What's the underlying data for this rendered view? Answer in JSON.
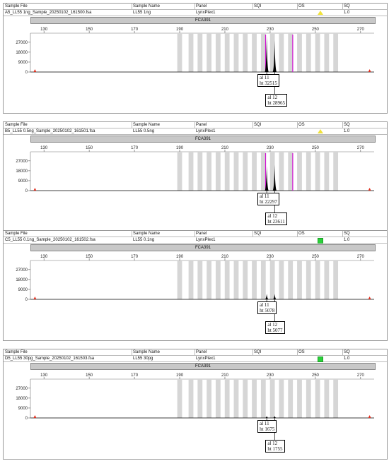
{
  "headers": {
    "sample_file": "Sample File",
    "sample_name": "Sample Name",
    "panel": "Panel",
    "sqi": "SQI",
    "os": "OS",
    "sq": "SQ"
  },
  "marker": "FCA391",
  "axis": {
    "x_ticks": [
      130,
      150,
      170,
      190,
      210,
      230,
      250,
      270
    ],
    "y_ticks": [
      27000,
      18000,
      9000,
      0
    ],
    "x_range": [
      124,
      276
    ],
    "y_max": 32000
  },
  "colors": {
    "warning": "#f0e23a",
    "ok": "#2bd13a",
    "peak": "#000000",
    "bin_line": "#d010d0",
    "bin": "#d6d6d6",
    "ladder": "#e03020"
  },
  "panels": [
    {
      "file": "A5_LL55 1ng_Sample_20250102_161500.fsa",
      "name": "LL55 1ng",
      "panel": "LynxPlex1",
      "status": "warning",
      "sq": "1.0",
      "show_header": false,
      "bin_lines": [
        228,
        240
      ],
      "calls": [
        {
          "label": "al 11",
          "height_label": "ht 32515",
          "size": 228.5,
          "height": 32515
        },
        {
          "label": "al 12",
          "height_label": "ht 28965",
          "size": 232,
          "height": 28965
        }
      ]
    },
    {
      "file": "B5_LL55 0.5ng_Sample_20250102_161501.fsa",
      "name": "LL55 0.5ng",
      "panel": "LynxPlex1",
      "status": "warning",
      "sq": "1.0",
      "show_header": false,
      "bin_lines": [
        228,
        240
      ],
      "calls": [
        {
          "label": "al 11",
          "height_label": "ht 22297",
          "size": 228.5,
          "height": 22297
        },
        {
          "label": "al 12",
          "height_label": "ht 23611",
          "size": 232,
          "height": 23611
        }
      ]
    },
    {
      "file": "C5_LL55 0.1ng_Sample_20250102_161502.fsa",
      "name": "LL55 0.1ng",
      "panel": "LynxPlex1",
      "status": "ok",
      "sq": "1.0",
      "show_header": true,
      "bin_lines": [],
      "calls": [
        {
          "label": "al 11",
          "height_label": "ht 5078",
          "size": 228.5,
          "height": 5078
        },
        {
          "label": "al 12",
          "height_label": "ht 5077",
          "size": 232,
          "height": 5077
        }
      ]
    },
    {
      "file": "D5_LL55 30pg_Sample_20250102_161503.fsa",
      "name": "LL55 30pg",
      "panel": "LynxPlex1",
      "status": "ok",
      "sq": "1.0",
      "show_header": false,
      "bin_lines": [],
      "calls": [
        {
          "label": "al 11",
          "height_label": "ht 1675",
          "size": 228.5,
          "height": 1675
        },
        {
          "label": "al 12",
          "height_label": "ht 1755",
          "size": 232,
          "height": 1755
        }
      ]
    }
  ]
}
